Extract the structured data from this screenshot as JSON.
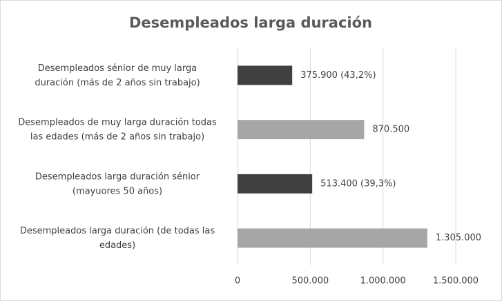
{
  "chart_data": {
    "type": "bar",
    "orientation": "horizontal",
    "title": "Desempleados larga duración",
    "categories": [
      "Desempleados sénior de muy larga\nduración (más de 2 años sin trabajo)",
      "Desempleados de muy larga duración todas\nlas edades (más de 2 años sin trabajo)",
      "Desempleados larga duración sénior\n(mayuores 50 años)",
      "Desempleados larga duración (de todas las\nedades)"
    ],
    "values": [
      375900,
      870500,
      513400,
      1305000
    ],
    "value_labels": [
      "375.900 (43,2%)",
      "870.500",
      "513.400 (39,3%)",
      "1.305.000"
    ],
    "colors": [
      "#404040",
      "#a6a6a6",
      "#404040",
      "#a6a6a6"
    ],
    "xlim": [
      0,
      1500000
    ],
    "xticks": [
      0,
      {
        "value": 500000,
        "label": "500.000"
      },
      {
        "value": 1000000,
        "label": "1.000.000"
      },
      {
        "value": 1500000,
        "label": "1.500.000"
      }
    ],
    "grid": true
  }
}
